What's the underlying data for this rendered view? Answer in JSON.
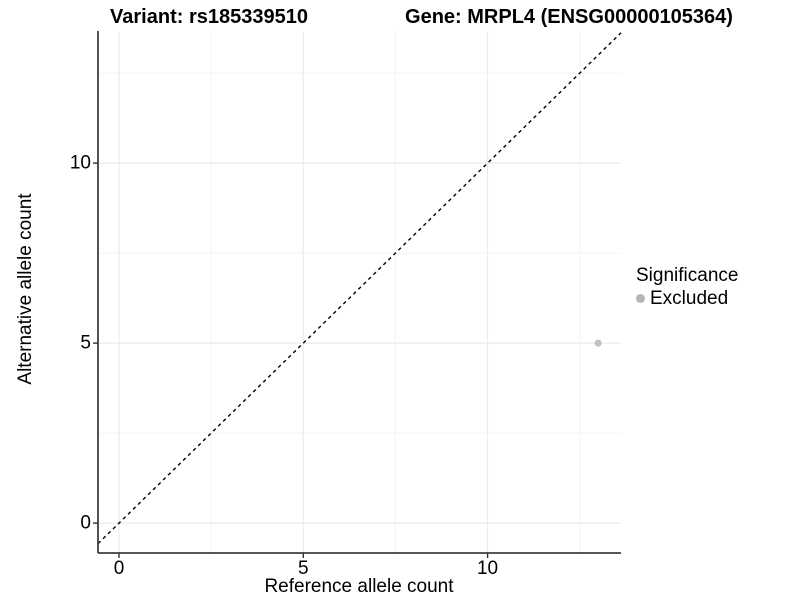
{
  "header": {
    "title_left": "Variant: rs185339510",
    "title_right": "Gene: MRPL4 (ENSG00000105364)"
  },
  "chart_data": {
    "type": "scatter",
    "title": "Variant: rs185339510   Gene: MRPL4 (ENSG00000105364)",
    "xlabel": "Reference allele count",
    "ylabel": "Alternative allele count",
    "xlim": [
      -0.57,
      13.62
    ],
    "ylim": [
      -0.83,
      13.67
    ],
    "x_ticks": [
      {
        "value": 0,
        "label": "0"
      },
      {
        "value": 5,
        "label": "5"
      },
      {
        "value": 10,
        "label": "10"
      }
    ],
    "y_ticks": [
      {
        "value": 0,
        "label": "0"
      },
      {
        "value": 5,
        "label": "5"
      },
      {
        "value": 10,
        "label": "10"
      }
    ],
    "x_minor_ticks": [
      2.5,
      7.5,
      12.5
    ],
    "y_minor_ticks": [
      2.5,
      7.5,
      12.5
    ],
    "grid": "major+minor",
    "series": [
      {
        "name": "Excluded",
        "color": "#c2c2c2",
        "marker": "circle",
        "points": [
          {
            "x": 13,
            "y": 5
          }
        ]
      }
    ],
    "reference_line": {
      "kind": "identity",
      "equation": "y = x",
      "style": "dashed",
      "color": "#000000"
    },
    "legend": {
      "title": "Significance",
      "position": "right",
      "items": [
        {
          "label": "Excluded",
          "marker": "circle",
          "color": "#b5b5b5"
        }
      ]
    },
    "colors": {
      "grid_major": "#ebebeb",
      "grid_minor": "#f4f4f4",
      "axis_line": "#3f3f3f",
      "tick_mark": "#333333",
      "text": "#000000"
    }
  }
}
